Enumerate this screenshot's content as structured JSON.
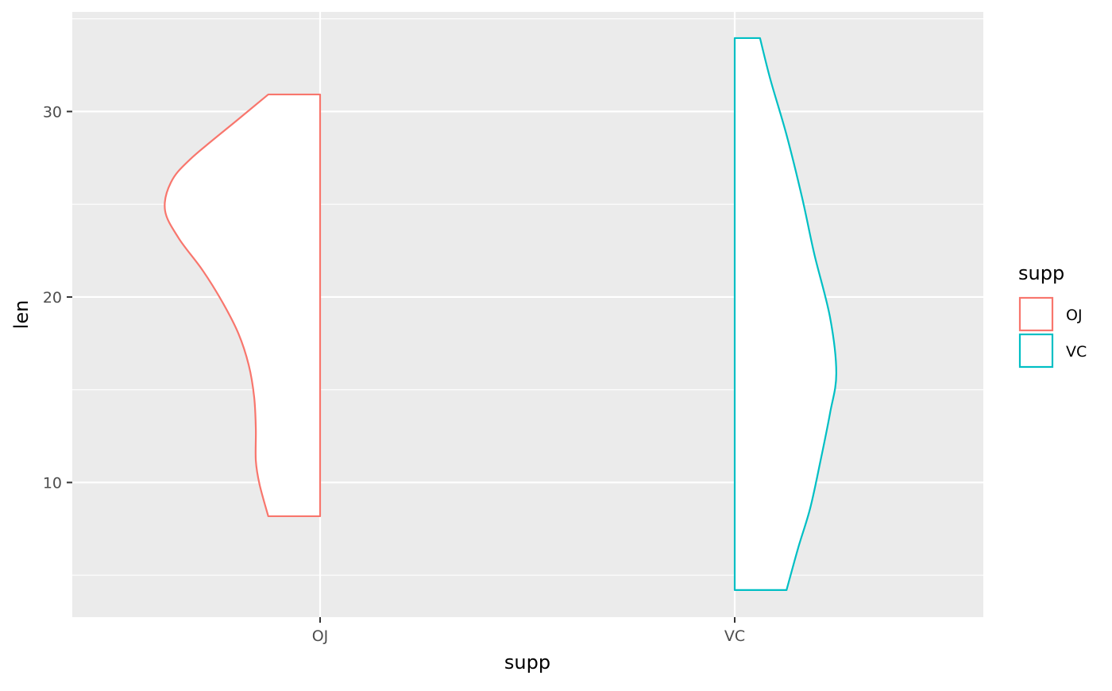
{
  "chart_data": {
    "type": "violin",
    "variant": "half-violin",
    "xlabel": "supp",
    "ylabel": "len",
    "categories": [
      "OJ",
      "VC"
    ],
    "y_ticks": [
      10,
      20,
      30
    ],
    "ylim": [
      2.74,
      35.37
    ],
    "grid": true,
    "legend": {
      "title": "supp",
      "position": "right",
      "items": [
        "OJ",
        "VC"
      ]
    },
    "colors": {
      "OJ": "#F8766D",
      "VC": "#00BFC4",
      "panel": "#EBEBEB",
      "grid": "#FFFFFF"
    },
    "series": [
      {
        "name": "OJ",
        "side": "left",
        "outline": [
          [
            30.92,
            0.125
          ],
          [
            29.59,
            0.197
          ],
          [
            27.45,
            0.312
          ],
          [
            26.17,
            0.36
          ],
          [
            24.67,
            0.374
          ],
          [
            23.17,
            0.341
          ],
          [
            21.46,
            0.284
          ],
          [
            19.74,
            0.236
          ],
          [
            18.03,
            0.197
          ],
          [
            16.32,
            0.172
          ],
          [
            14.6,
            0.159
          ],
          [
            12.89,
            0.155
          ],
          [
            11.18,
            0.155
          ],
          [
            9.89,
            0.146
          ],
          [
            8.18,
            0.125
          ]
        ]
      },
      {
        "name": "VC",
        "side": "right",
        "outline": [
          [
            33.96,
            0.061
          ],
          [
            31.73,
            0.086
          ],
          [
            28.74,
            0.125
          ],
          [
            25.31,
            0.163
          ],
          [
            22.31,
            0.192
          ],
          [
            18.89,
            0.23
          ],
          [
            15.89,
            0.245
          ],
          [
            13.75,
            0.23
          ],
          [
            11.18,
            0.207
          ],
          [
            8.61,
            0.182
          ],
          [
            6.47,
            0.153
          ],
          [
            4.2,
            0.125
          ]
        ]
      }
    ]
  }
}
